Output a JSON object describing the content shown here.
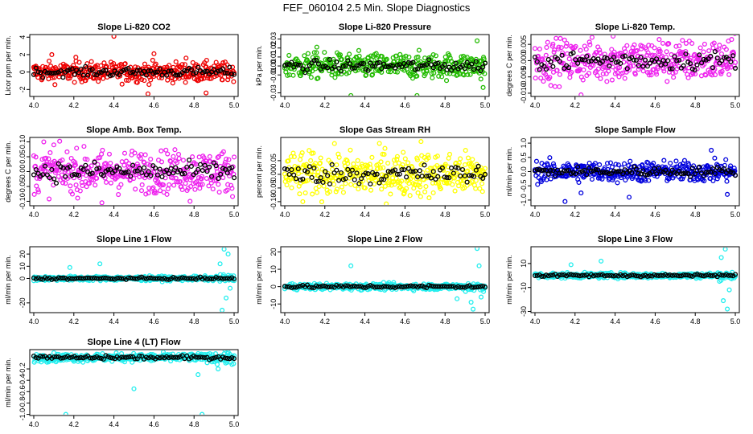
{
  "figure_title": "FEF_060104  2.5 Min. Slope Diagnostics",
  "chart_data": [
    {
      "type": "scatter",
      "title": "Slope Li-820 CO2",
      "ylabel": "Licor ppm per min.",
      "color": "#ee0000",
      "xlim": [
        3.98,
        5.02
      ],
      "xticks": [
        "4.0",
        "4.2",
        "4.4",
        "4.6",
        "4.8",
        "5.0"
      ],
      "ylim": [
        -2.8,
        4.3
      ],
      "yticks": [
        "-2",
        "0",
        "2",
        "4"
      ],
      "spread": 0.55,
      "outliers": [
        [
          4.4,
          4.1
        ],
        [
          4.57,
          -2.5
        ],
        [
          4.86,
          -2.4
        ],
        [
          4.6,
          2.1
        ],
        [
          4.09,
          2.0
        ],
        [
          4.21,
          1.7
        ],
        [
          4.76,
          1.6
        ]
      ]
    },
    {
      "type": "scatter",
      "title": "Slope Li-820 Pressure",
      "ylabel": "kPa per min.",
      "color": "#22bb00",
      "xlim": [
        3.98,
        5.02
      ],
      "xticks": [
        "4.0",
        "4.2",
        "4.4",
        "4.6",
        "4.8",
        "5.0"
      ],
      "ylim": [
        -0.034,
        0.035
      ],
      "yticks": [
        "-0.03",
        "-0.01",
        "0.00",
        "0.01",
        "0.02",
        "0.03"
      ],
      "spread": 0.007,
      "outliers": [
        [
          4.33,
          -0.033
        ],
        [
          4.66,
          -0.033
        ],
        [
          4.99,
          -0.024
        ],
        [
          4.96,
          0.028
        ],
        [
          4.16,
          0.021
        ]
      ]
    },
    {
      "type": "scatter",
      "title": "Slope Li-820 Temp.",
      "ylabel": "degrees C per min.",
      "color": "#ee22ee",
      "xlim": [
        3.98,
        5.02
      ],
      "xticks": [
        "4.0",
        "4.2",
        "4.4",
        "4.6",
        "4.8",
        "5.0"
      ],
      "ylim": [
        -0.011,
        0.008
      ],
      "yticks": [
        "-0.010",
        "-0.005",
        "0.000",
        "0.005"
      ],
      "spread": 0.0032,
      "outliers": [
        [
          4.39,
          0.0075
        ],
        [
          4.23,
          -0.0105
        ],
        [
          4.62,
          0.0065
        ]
      ]
    },
    {
      "type": "scatter",
      "title": "Slope Amb. Box Temp.",
      "ylabel": "degrees C per min.",
      "color": "#ee22ee",
      "xlim": [
        3.98,
        5.02
      ],
      "xticks": [
        "4.0",
        "4.2",
        "4.4",
        "4.6",
        "4.8",
        "5.0"
      ],
      "ylim": [
        -0.115,
        0.115
      ],
      "yticks": [
        "-0.10",
        "-0.05",
        "0.00",
        "0.05",
        "0.10"
      ],
      "spread": 0.035,
      "outliers": [
        [
          4.05,
          0.1
        ],
        [
          4.1,
          0.09
        ],
        [
          4.34,
          -0.105
        ],
        [
          4.78,
          -0.1
        ]
      ]
    },
    {
      "type": "scatter",
      "title": "Slope Gas Stream RH",
      "ylabel": "percent per min.",
      "color": "#ffff00",
      "xlim": [
        3.98,
        5.02
      ],
      "xticks": [
        "4.0",
        "4.2",
        "4.4",
        "4.6",
        "4.8",
        "5.0"
      ],
      "ylim": [
        -0.115,
        0.135
      ],
      "yticks": [
        "-0.10",
        "-0.05",
        "0.00",
        "0.05"
      ],
      "spread": 0.04,
      "outliers": [
        [
          4.68,
          0.12
        ],
        [
          4.09,
          -0.1
        ],
        [
          4.5,
          0.095
        ]
      ]
    },
    {
      "type": "scatter",
      "title": "Slope Sample Flow",
      "ylabel": "ml/min per min.",
      "color": "#0000dd",
      "xlim": [
        3.98,
        5.02
      ],
      "xticks": [
        "4.0",
        "4.2",
        "4.4",
        "4.6",
        "4.8",
        "5.0"
      ],
      "ylim": [
        -1.2,
        1.2
      ],
      "yticks": [
        "-1.0",
        "-0.5",
        "0.0",
        "0.5",
        "1.0"
      ],
      "spread": 0.18,
      "outliers": [
        [
          4.15,
          -1.05
        ],
        [
          4.47,
          -0.9
        ],
        [
          4.88,
          0.75
        ],
        [
          4.96,
          -0.8
        ],
        [
          4.23,
          -0.75
        ]
      ]
    },
    {
      "type": "scatter",
      "title": "Slope Line 1 Flow",
      "ylabel": "ml/min per min.",
      "color": "#22eeee",
      "xlim": [
        3.98,
        5.02
      ],
      "xticks": [
        "4.0",
        "4.2",
        "4.4",
        "4.6",
        "4.8",
        "5.0"
      ],
      "ylim": [
        -28,
        26
      ],
      "yticks": [
        "-20",
        "0",
        "10",
        "20"
      ],
      "spread": 0.9,
      "outliers": [
        [
          4.95,
          24
        ],
        [
          4.94,
          -26
        ],
        [
          4.97,
          20
        ],
        [
          4.96,
          -16
        ],
        [
          4.93,
          12
        ],
        [
          4.98,
          -8
        ],
        [
          4.33,
          12
        ],
        [
          4.18,
          9
        ]
      ]
    },
    {
      "type": "scatter",
      "title": "Slope Line 2 Flow",
      "ylabel": "ml/min per min.",
      "color": "#22eeee",
      "xlim": [
        3.98,
        5.02
      ],
      "xticks": [
        "4.0",
        "4.2",
        "4.4",
        "4.6",
        "4.8",
        "5.0"
      ],
      "ylim": [
        -15,
        23
      ],
      "yticks": [
        "-10",
        "0",
        "10",
        "20"
      ],
      "spread": 0.9,
      "outliers": [
        [
          4.96,
          22
        ],
        [
          4.94,
          -13
        ],
        [
          4.93,
          -9
        ],
        [
          4.97,
          12
        ],
        [
          4.98,
          -6
        ],
        [
          4.33,
          12
        ],
        [
          4.86,
          -7
        ]
      ]
    },
    {
      "type": "scatter",
      "title": "Slope Line 3 Flow",
      "ylabel": "ml/min per min.",
      "color": "#22eeee",
      "xlim": [
        3.98,
        5.02
      ],
      "xticks": [
        "4.0",
        "4.2",
        "4.4",
        "4.6",
        "4.8",
        "5.0"
      ],
      "ylim": [
        -31,
        24
      ],
      "yticks": [
        "-30",
        "-10",
        "10"
      ],
      "spread": 1.1,
      "outliers": [
        [
          4.95,
          22
        ],
        [
          4.96,
          -28
        ],
        [
          4.94,
          -21
        ],
        [
          4.97,
          -12
        ],
        [
          4.93,
          15
        ],
        [
          4.33,
          12
        ],
        [
          4.18,
          9
        ]
      ]
    },
    {
      "type": "scatter",
      "title": "Slope Line 4 (LT) Flow",
      "ylabel": "ml/min per min.",
      "color": "#22eeee",
      "xlim": [
        3.98,
        5.02
      ],
      "xticks": [
        "4.0",
        "4.2",
        "4.4",
        "4.6",
        "4.8",
        "5.0"
      ],
      "ylim": [
        -1.02,
        0.14
      ],
      "yticks": [
        "-1.0",
        "-0.8",
        "-0.6",
        "-0.4",
        "-0.2"
      ],
      "spread": 0.035,
      "outliers": [
        [
          4.16,
          -1.0
        ],
        [
          4.84,
          -1.0
        ],
        [
          4.5,
          -0.55
        ],
        [
          4.82,
          -0.3
        ],
        [
          4.92,
          -0.2
        ]
      ]
    }
  ]
}
